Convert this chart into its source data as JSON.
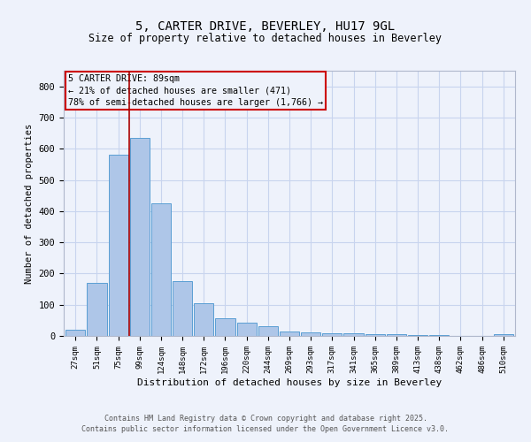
{
  "title_line1": "5, CARTER DRIVE, BEVERLEY, HU17 9GL",
  "title_line2": "Size of property relative to detached houses in Beverley",
  "xlabel": "Distribution of detached houses by size in Beverley",
  "ylabel": "Number of detached properties",
  "bar_labels": [
    "27sqm",
    "51sqm",
    "75sqm",
    "99sqm",
    "124sqm",
    "148sqm",
    "172sqm",
    "196sqm",
    "220sqm",
    "244sqm",
    "269sqm",
    "293sqm",
    "317sqm",
    "341sqm",
    "365sqm",
    "389sqm",
    "413sqm",
    "438sqm",
    "462sqm",
    "486sqm",
    "510sqm"
  ],
  "bar_values": [
    20,
    170,
    580,
    635,
    425,
    175,
    105,
    57,
    42,
    32,
    15,
    10,
    9,
    8,
    6,
    5,
    4,
    2,
    1,
    0,
    7
  ],
  "bar_color": "#aec6e8",
  "bar_edge_color": "#5a9fd4",
  "property_line_x": 2.52,
  "annotation_title": "5 CARTER DRIVE: 89sqm",
  "annotation_line2": "← 21% of detached houses are smaller (471)",
  "annotation_line3": "78% of semi-detached houses are larger (1,766) →",
  "annotation_box_color": "#cc0000",
  "vline_color": "#aa0000",
  "ylim": [
    0,
    850
  ],
  "yticks": [
    0,
    100,
    200,
    300,
    400,
    500,
    600,
    700,
    800
  ],
  "footer_line1": "Contains HM Land Registry data © Crown copyright and database right 2025.",
  "footer_line2": "Contains public sector information licensed under the Open Government Licence v3.0.",
  "bg_color": "#eef2fb",
  "grid_color": "#c8d4ee"
}
